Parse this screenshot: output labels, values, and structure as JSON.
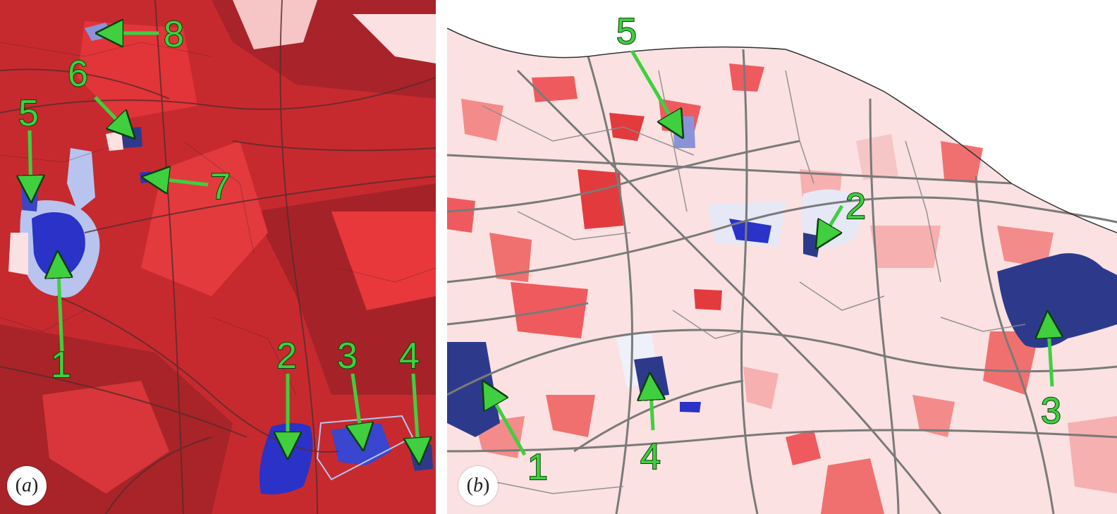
{
  "colors": {
    "dark_red": "#b3252a",
    "red": "#e63035",
    "light_red": "#f48b8b",
    "pink": "#fbe1e1",
    "dark_blue": "#2d3a8c",
    "blue": "#2a32c8",
    "light_blue": "#b8c4ee",
    "road_gray": "#7a7a7a",
    "arrow_green": "#3fcf3f"
  },
  "panel_a": {
    "label_open": "(",
    "label_letter": "a",
    "label_close": ")",
    "markers": [
      "1",
      "2",
      "3",
      "4",
      "5",
      "6",
      "7",
      "8"
    ]
  },
  "panel_b": {
    "label_open": "(",
    "label_letter": "b",
    "label_close": ")",
    "markers": [
      "1",
      "2",
      "3",
      "4",
      "5"
    ]
  }
}
